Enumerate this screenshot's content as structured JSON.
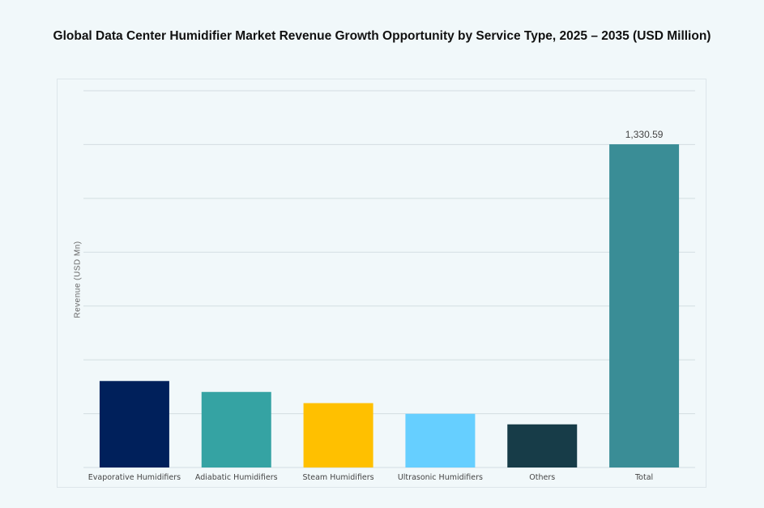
{
  "chart_data": {
    "type": "bar",
    "title": "Global Data Center Humidifier Market Revenue Growth Opportunity by Service Type, 2025 – 2035 (USD Million)",
    "xlabel": "",
    "ylabel": "Revenue (USD Mn)",
    "categories": [
      "Evaporative Humidifiers",
      "Adiabatic Humidifiers",
      "Steam Humidifiers",
      "Ultrasonic Humidifiers",
      "Others",
      "Total"
    ],
    "values": [
      356,
      311,
      265,
      221,
      177.59,
      1330.59
    ],
    "data_labels": [
      "",
      "",
      "",
      "",
      "",
      "1,330.59"
    ],
    "colors": [
      "#00205b",
      "#35a3a3",
      "#ffc000",
      "#66cfff",
      "#173c48",
      "#3a8d96"
    ],
    "ylim": [
      0,
      1551
    ],
    "grid": true,
    "legend": "none"
  }
}
